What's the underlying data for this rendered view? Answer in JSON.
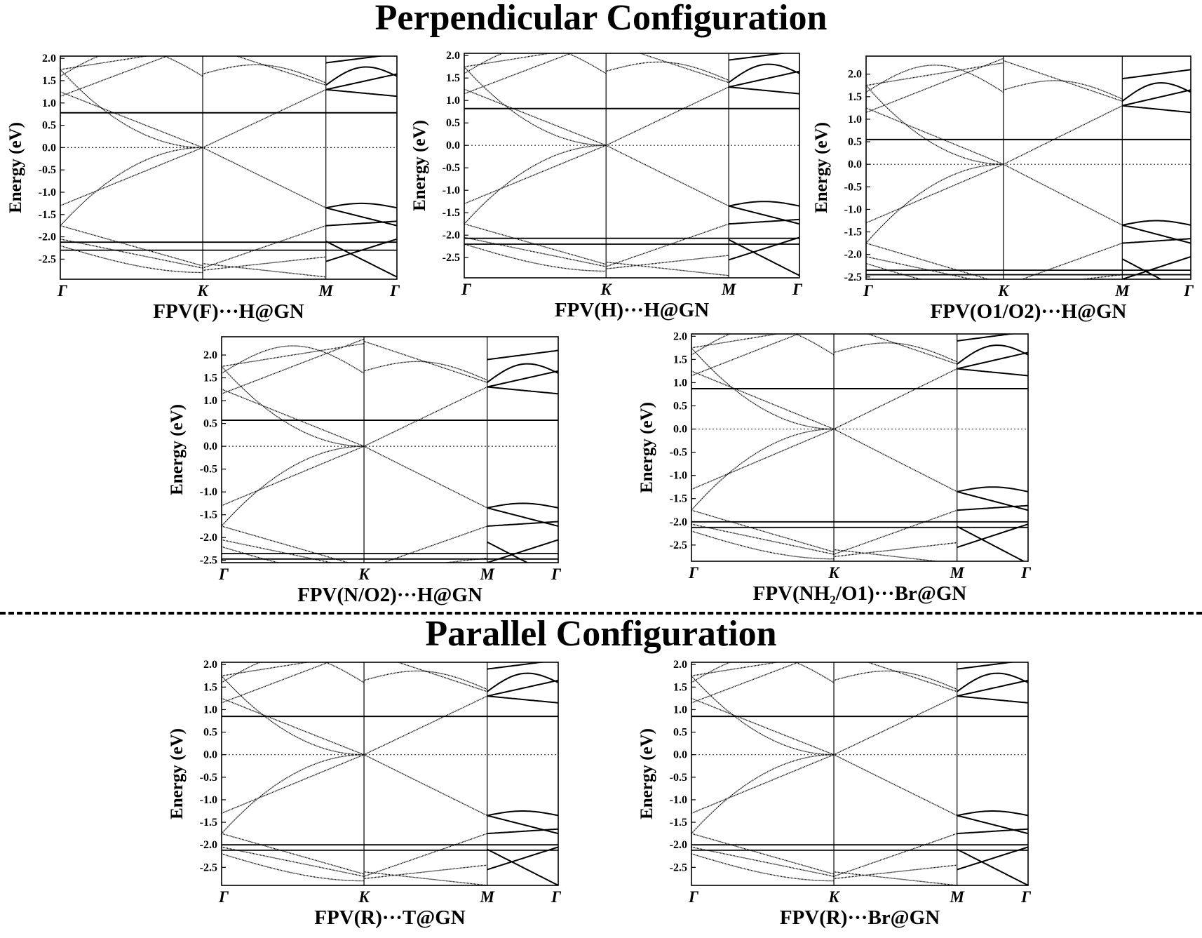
{
  "titles": {
    "perpendicular": "Perpendicular Configuration",
    "parallel": "Parallel Configuration"
  },
  "chart_data": [
    {
      "type": "line",
      "caption": "FPV(F)···H@GN",
      "ylabel": "Energy (eV)",
      "ylim": [
        -2.95,
        2.05
      ],
      "yticks": [
        "2.0",
        "1.5",
        "1.0",
        "0.5",
        "0.0",
        "-0.5",
        "-1.0",
        "-1.5",
        "-2.0",
        "-2.5"
      ],
      "kpoints": [
        "Γ",
        "K",
        "M",
        "Γ"
      ],
      "kfrac": [
        0,
        0.423,
        0.789,
        1
      ],
      "fermi_level": 0.0,
      "flat_bands": [
        0.78,
        -2.12,
        -2.3
      ],
      "accent": "#000000"
    },
    {
      "type": "line",
      "caption": "FPV(H)···H@GN",
      "ylabel": "Energy (eV)",
      "ylim": [
        -2.95,
        2.05
      ],
      "yticks": [
        "2.0",
        "1.5",
        "1.0",
        "0.5",
        "0.0",
        "-0.5",
        "-1.0",
        "-1.5",
        "-2.0",
        "-2.5"
      ],
      "kpoints": [
        "Γ",
        "K",
        "M",
        "Γ"
      ],
      "kfrac": [
        0,
        0.423,
        0.789,
        1
      ],
      "fermi_level": 0.0,
      "flat_bands": [
        0.82,
        -2.07,
        -2.2
      ],
      "accent": "#000000"
    },
    {
      "type": "line",
      "caption": "FPV(O1/O2)···H@GN",
      "ylabel": "Energy (eV)",
      "ylim": [
        -2.55,
        2.4
      ],
      "yticks": [
        "2.0",
        "1.5",
        "1.0",
        "0.5",
        "0.0",
        "-0.5",
        "-1.0",
        "-1.5",
        "-2.0",
        "-2.5"
      ],
      "kpoints": [
        "Γ",
        "K",
        "M",
        "Γ"
      ],
      "kfrac": [
        0,
        0.423,
        0.789,
        1
      ],
      "fermi_level": 0.0,
      "flat_bands": [
        0.55,
        -2.35,
        -2.45
      ],
      "accent": "#000000"
    },
    {
      "type": "line",
      "caption": "FPV(N/O2)···H@GN",
      "ylabel": "Energy (eV)",
      "ylim": [
        -2.55,
        2.4
      ],
      "yticks": [
        "2.0",
        "1.5",
        "1.0",
        "0.5",
        "0.0",
        "-0.5",
        "-1.0",
        "-1.5",
        "-2.0",
        "-2.5"
      ],
      "kpoints": [
        "Γ",
        "K",
        "M",
        "Γ"
      ],
      "kfrac": [
        0,
        0.423,
        0.789,
        1
      ],
      "fermi_level": 0.0,
      "flat_bands": [
        0.57,
        -2.35,
        -2.47
      ],
      "accent": "#000000"
    },
    {
      "type": "line",
      "caption": "FPV(NH₂/O1)···Br@GN",
      "ylabel": "Energy (eV)",
      "ylim": [
        -2.85,
        2.05
      ],
      "yticks": [
        "2.0",
        "1.5",
        "1.0",
        "0.5",
        "0.0",
        "-0.5",
        "-1.0",
        "-1.5",
        "-2.0",
        "-2.5"
      ],
      "kpoints": [
        "Γ",
        "K",
        "M",
        "Γ"
      ],
      "kfrac": [
        0,
        0.423,
        0.789,
        1
      ],
      "fermi_level": 0.0,
      "flat_bands": [
        0.87,
        -2.0,
        -2.12
      ],
      "accent": "#000000"
    },
    {
      "type": "line",
      "caption": "FPV(R)···T@GN",
      "ylabel": "Energy (eV)",
      "ylim": [
        -2.9,
        2.05
      ],
      "yticks": [
        "2.0",
        "1.5",
        "1.0",
        "0.5",
        "0.0",
        "-0.5",
        "-1.0",
        "-1.5",
        "-2.0",
        "-2.5"
      ],
      "kpoints": [
        "Γ",
        "K",
        "M",
        "Γ"
      ],
      "kfrac": [
        0,
        0.423,
        0.789,
        1
      ],
      "fermi_level": 0.0,
      "flat_bands": [
        0.85,
        -2.0,
        -2.12
      ],
      "accent": "#000000"
    },
    {
      "type": "line",
      "caption": "FPV(R)···Br@GN",
      "ylabel": "Energy (eV)",
      "ylim": [
        -2.9,
        2.05
      ],
      "yticks": [
        "2.0",
        "1.5",
        "1.0",
        "0.5",
        "0.0",
        "-0.5",
        "-1.0",
        "-1.5",
        "-2.0",
        "-2.5"
      ],
      "kpoints": [
        "Γ",
        "K",
        "M",
        "Γ"
      ],
      "kfrac": [
        0,
        0.423,
        0.789,
        1
      ],
      "fermi_level": 0.0,
      "flat_bands": [
        0.85,
        -2.0,
        -2.12
      ],
      "accent": "#000000"
    }
  ]
}
